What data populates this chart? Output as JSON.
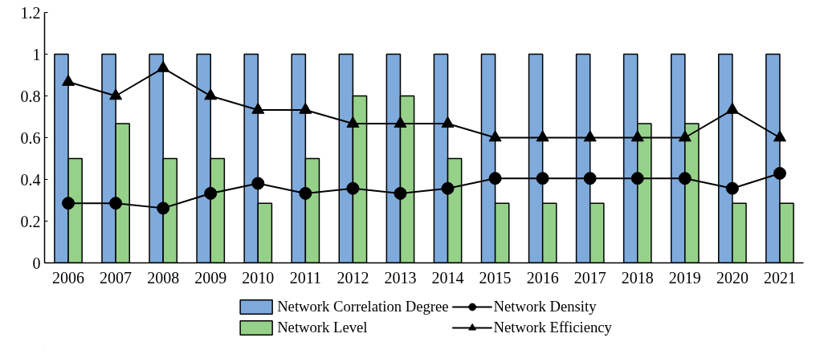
{
  "chart_data": {
    "type": "bar",
    "categories": [
      "2006",
      "2007",
      "2008",
      "2009",
      "2010",
      "2011",
      "2012",
      "2013",
      "2014",
      "2015",
      "2016",
      "2017",
      "2018",
      "2019",
      "2020",
      "2021"
    ],
    "series": [
      {
        "name": "Network Correlation Degree",
        "color": "#7faadc",
        "values": [
          1,
          1,
          1,
          1,
          1,
          1,
          1,
          1,
          1,
          1,
          1,
          1,
          1,
          1,
          1,
          1
        ]
      },
      {
        "name": "Network Level",
        "color": "#96d18a",
        "values": [
          0.5,
          0.667,
          0.5,
          0.5,
          0.286,
          0.5,
          0.8,
          0.8,
          0.5,
          0.286,
          0.286,
          0.286,
          0.667,
          0.667,
          0.286,
          0.286
        ]
      },
      {
        "name": "Network Density",
        "type": "line",
        "color": "#000000",
        "marker": "circle",
        "values": [
          0.286,
          0.286,
          0.262,
          0.333,
          0.381,
          0.333,
          0.357,
          0.333,
          0.357,
          0.405,
          0.405,
          0.405,
          0.405,
          0.405,
          0.357,
          0.429
        ]
      },
      {
        "name": "Network Efficiency",
        "type": "line",
        "color": "#000000",
        "marker": "triangle",
        "values": [
          0.867,
          0.8,
          0.933,
          0.8,
          0.733,
          0.733,
          0.667,
          0.667,
          0.667,
          0.6,
          0.6,
          0.6,
          0.6,
          0.6,
          0.733,
          0.6
        ]
      }
    ],
    "ylim": [
      0,
      1.2
    ],
    "yticks": [
      0,
      0.2,
      0.4,
      0.6,
      0.8,
      1,
      1.2
    ],
    "grid": false,
    "legend": "bottom"
  }
}
